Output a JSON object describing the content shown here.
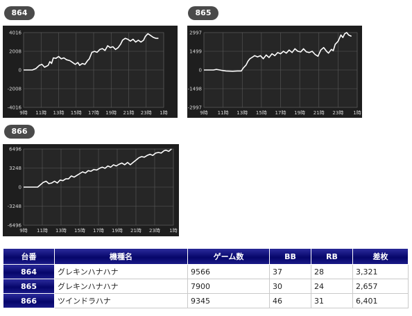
{
  "chart_data": [
    {
      "type": "line",
      "label": "864",
      "ylim": [
        -4016,
        4016
      ],
      "yticks": [
        "4016",
        "2008",
        "0",
        "-2008",
        "-4016"
      ],
      "xticks": [
        "9時",
        "11時",
        "13時",
        "15時",
        "17時",
        "19時",
        "21時",
        "23時",
        "1時"
      ],
      "series": [
        {
          "points": [
            [
              9.0,
              0
            ],
            [
              10.0,
              0
            ],
            [
              10.4,
              150
            ],
            [
              10.8,
              500
            ],
            [
              11.1,
              600
            ],
            [
              11.4,
              300
            ],
            [
              11.8,
              500
            ],
            [
              12.0,
              900
            ],
            [
              12.2,
              700
            ],
            [
              12.4,
              1300
            ],
            [
              12.7,
              1250
            ],
            [
              13.0,
              1450
            ],
            [
              13.3,
              1200
            ],
            [
              13.6,
              1300
            ],
            [
              13.9,
              1100
            ],
            [
              14.3,
              1000
            ],
            [
              14.6,
              800
            ],
            [
              14.9,
              600
            ],
            [
              15.2,
              800
            ],
            [
              15.4,
              500
            ],
            [
              15.7,
              700
            ],
            [
              16.0,
              600
            ],
            [
              16.3,
              1000
            ],
            [
              16.5,
              1200
            ],
            [
              16.8,
              1900
            ],
            [
              17.1,
              2000
            ],
            [
              17.4,
              1900
            ],
            [
              17.7,
              2200
            ],
            [
              18.0,
              2300
            ],
            [
              18.3,
              2100
            ],
            [
              18.6,
              2600
            ],
            [
              18.9,
              2400
            ],
            [
              19.2,
              2500
            ],
            [
              19.5,
              2200
            ],
            [
              19.8,
              2400
            ],
            [
              20.1,
              2800
            ],
            [
              20.3,
              3200
            ],
            [
              20.6,
              3400
            ],
            [
              20.9,
              3300
            ],
            [
              21.2,
              3100
            ],
            [
              21.5,
              3300
            ],
            [
              21.8,
              3000
            ],
            [
              22.1,
              3200
            ],
            [
              22.4,
              3000
            ],
            [
              22.7,
              3200
            ],
            [
              22.9,
              3600
            ],
            [
              23.2,
              3900
            ],
            [
              23.5,
              3700
            ],
            [
              23.8,
              3500
            ],
            [
              24.1,
              3400
            ],
            [
              24.4,
              3400
            ]
          ]
        }
      ]
    },
    {
      "type": "line",
      "label": "865",
      "ylim": [
        -2997,
        2997
      ],
      "yticks": [
        "2997",
        "1499",
        "0",
        "-1498",
        "-2997"
      ],
      "xticks": [
        "9時",
        "11時",
        "13時",
        "15時",
        "17時",
        "19時",
        "21時",
        "23時",
        "1時"
      ],
      "series": [
        {
          "points": [
            [
              9.0,
              0
            ],
            [
              10.0,
              0
            ],
            [
              10.3,
              50
            ],
            [
              10.8,
              -20
            ],
            [
              11.3,
              -80
            ],
            [
              12.0,
              -100
            ],
            [
              12.5,
              -80
            ],
            [
              12.9,
              -80
            ],
            [
              13.1,
              150
            ],
            [
              13.4,
              400
            ],
            [
              13.6,
              700
            ],
            [
              13.8,
              900
            ],
            [
              14.0,
              1000
            ],
            [
              14.3,
              1150
            ],
            [
              14.6,
              1050
            ],
            [
              14.9,
              1150
            ],
            [
              15.2,
              900
            ],
            [
              15.5,
              1200
            ],
            [
              15.8,
              1000
            ],
            [
              16.1,
              1300
            ],
            [
              16.4,
              1150
            ],
            [
              16.7,
              1400
            ],
            [
              17.0,
              1300
            ],
            [
              17.3,
              1500
            ],
            [
              17.6,
              1350
            ],
            [
              17.9,
              1600
            ],
            [
              18.2,
              1400
            ],
            [
              18.5,
              1700
            ],
            [
              18.8,
              1500
            ],
            [
              19.1,
              1450
            ],
            [
              19.4,
              1700
            ],
            [
              19.7,
              1450
            ],
            [
              20.0,
              1400
            ],
            [
              20.3,
              1500
            ],
            [
              20.6,
              1250
            ],
            [
              20.9,
              1100
            ],
            [
              21.2,
              1600
            ],
            [
              21.5,
              1800
            ],
            [
              21.8,
              1500
            ],
            [
              22.0,
              1350
            ],
            [
              22.3,
              1650
            ],
            [
              22.5,
              1550
            ],
            [
              22.7,
              2050
            ],
            [
              23.0,
              2300
            ],
            [
              23.3,
              2800
            ],
            [
              23.5,
              2600
            ],
            [
              23.7,
              2900
            ],
            [
              23.9,
              3000
            ],
            [
              24.1,
              2800
            ],
            [
              24.4,
              2700
            ]
          ]
        }
      ]
    },
    {
      "type": "line",
      "label": "866",
      "ylim": [
        -6496,
        6496
      ],
      "yticks": [
        "6496",
        "3248",
        "0",
        "-3248",
        "-6496"
      ],
      "xticks": [
        "9時",
        "11時",
        "13時",
        "15時",
        "17時",
        "19時",
        "21時",
        "23時",
        "1時"
      ],
      "series": [
        {
          "points": [
            [
              9.0,
              0
            ],
            [
              10.5,
              0
            ],
            [
              10.8,
              400
            ],
            [
              11.1,
              800
            ],
            [
              11.4,
              1000
            ],
            [
              11.7,
              600
            ],
            [
              12.0,
              700
            ],
            [
              12.3,
              1000
            ],
            [
              12.6,
              700
            ],
            [
              12.9,
              1200
            ],
            [
              13.2,
              1100
            ],
            [
              13.5,
              1400
            ],
            [
              13.8,
              1400
            ],
            [
              14.1,
              1900
            ],
            [
              14.4,
              1700
            ],
            [
              14.7,
              2000
            ],
            [
              15.0,
              2300
            ],
            [
              15.3,
              2600
            ],
            [
              15.6,
              2400
            ],
            [
              15.9,
              2800
            ],
            [
              16.2,
              2700
            ],
            [
              16.5,
              3000
            ],
            [
              16.8,
              2900
            ],
            [
              17.1,
              3200
            ],
            [
              17.4,
              3400
            ],
            [
              17.7,
              3200
            ],
            [
              18.0,
              3600
            ],
            [
              18.3,
              3400
            ],
            [
              18.6,
              3800
            ],
            [
              18.9,
              3600
            ],
            [
              19.2,
              3900
            ],
            [
              19.5,
              4100
            ],
            [
              19.8,
              3800
            ],
            [
              20.1,
              4200
            ],
            [
              20.4,
              3800
            ],
            [
              20.7,
              4200
            ],
            [
              21.0,
              4600
            ],
            [
              21.3,
              5000
            ],
            [
              21.6,
              5200
            ],
            [
              21.9,
              5100
            ],
            [
              22.2,
              5400
            ],
            [
              22.5,
              5600
            ],
            [
              22.8,
              5400
            ],
            [
              23.1,
              5800
            ],
            [
              23.4,
              5900
            ],
            [
              23.7,
              5800
            ],
            [
              24.0,
              6200
            ],
            [
              24.2,
              6300
            ],
            [
              24.5,
              6100
            ],
            [
              24.8,
              6500
            ]
          ]
        }
      ]
    }
  ],
  "table": {
    "headers": [
      "台番",
      "機種名",
      "ゲーム数",
      "BB",
      "RB",
      "差枚"
    ],
    "rows": [
      [
        "864",
        "グレキンハナハナ",
        "9566",
        "37",
        "28",
        "3,321"
      ],
      [
        "865",
        "グレキンハナハナ",
        "7900",
        "30",
        "24",
        "2,657"
      ],
      [
        "866",
        "ツインドラハナ",
        "9345",
        "46",
        "31",
        "6,401"
      ]
    ]
  }
}
